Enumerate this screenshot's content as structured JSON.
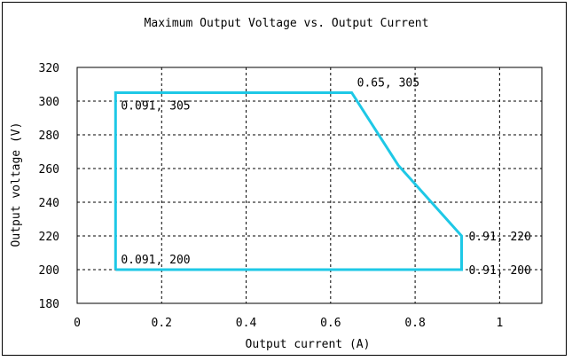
{
  "chart_data": {
    "type": "line",
    "title": "Maximum Output Voltage vs. Output Current",
    "xlabel": "Output current (A)",
    "ylabel": "Output voltage (V)",
    "xlim": [
      0,
      1.1
    ],
    "ylim": [
      180,
      320
    ],
    "x_ticks": [
      0,
      0.2,
      0.4,
      0.6,
      0.8,
      1
    ],
    "x_tick_labels": [
      "0",
      "0.2",
      "0.4",
      "0.6",
      "0.8",
      "1"
    ],
    "y_ticks": [
      180,
      200,
      220,
      240,
      260,
      280,
      300,
      320
    ],
    "y_tick_labels": [
      "180",
      "200",
      "220",
      "240",
      "260",
      "280",
      "300",
      "320"
    ],
    "grid": true,
    "grid_x": [
      0.2,
      0.4,
      0.6,
      0.8,
      1
    ],
    "grid_y": [
      200,
      220,
      240,
      260,
      280,
      300
    ],
    "series": [
      {
        "color": "#1ec8e6",
        "points": [
          [
            0.091,
            200
          ],
          [
            0.091,
            305
          ],
          [
            0.65,
            305
          ],
          [
            0.76,
            262
          ],
          [
            0.91,
            220
          ],
          [
            0.91,
            200
          ],
          [
            0.091,
            200
          ]
        ]
      }
    ],
    "annotations": [
      {
        "text": "0.091, 305",
        "x": 0.091,
        "y": 305,
        "anchor": "below-right"
      },
      {
        "text": "0.65, 305",
        "x": 0.65,
        "y": 305,
        "anchor": "above-right"
      },
      {
        "text": "0.91, 220",
        "x": 0.91,
        "y": 220,
        "anchor": "right"
      },
      {
        "text": "0.091, 200",
        "x": 0.091,
        "y": 200,
        "anchor": "above-right"
      },
      {
        "text": "0.91, 200",
        "x": 0.91,
        "y": 200,
        "anchor": "right"
      }
    ]
  }
}
